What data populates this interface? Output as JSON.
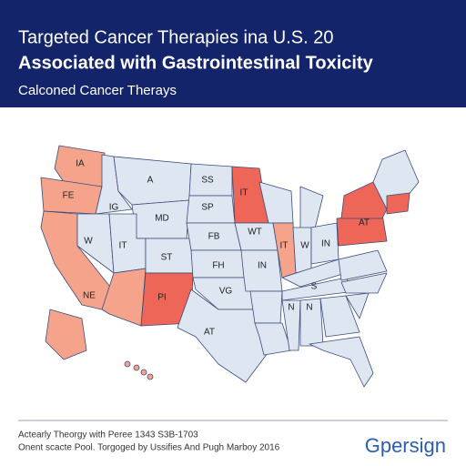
{
  "header": {
    "title": "Targeted Cancer Therapies ina U.S. 20",
    "title_bold": "Associated with Gastrointestinal Toxicity",
    "subtitle": "Calconed Cancer Therays"
  },
  "map": {
    "state_labels": [
      "IA",
      "FE",
      "A",
      "SS",
      "IT",
      "IG",
      "MD",
      "SP",
      "W",
      "IT",
      "ST",
      "FB",
      "FH",
      "WT",
      "IT",
      "IN",
      "NE",
      "PI",
      "VG",
      "AT",
      "AT",
      "W",
      "IN",
      "S",
      "N",
      "N"
    ]
  },
  "footer": {
    "line1": "Actearly Theorgy with Peree 1343 S3B-1703",
    "line2": "Onent scacte Pool. Torgoged by Ussifies And Pugh Marboy 2016",
    "logo": "Gpersign"
  }
}
